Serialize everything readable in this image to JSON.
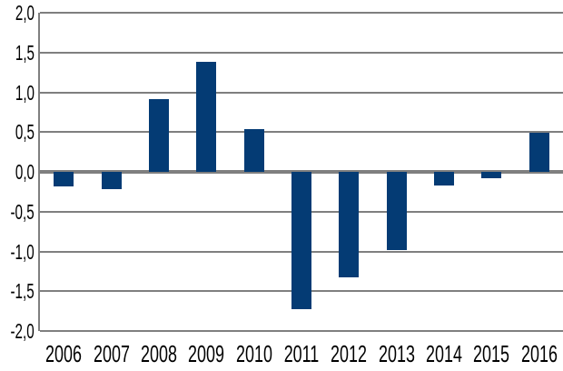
{
  "chart_data": {
    "type": "bar",
    "title": "",
    "xlabel": "",
    "ylabel": "",
    "categories": [
      "2006",
      "2007",
      "2008",
      "2009",
      "2010",
      "2011",
      "2012",
      "2013",
      "2014",
      "2015",
      "2016"
    ],
    "values": [
      -0.18,
      -0.22,
      0.92,
      1.38,
      0.54,
      -1.72,
      -1.33,
      -0.98,
      -0.17,
      -0.08,
      0.49
    ],
    "ylim": [
      -2.0,
      2.0
    ],
    "ytick_step": 0.5,
    "ytick_labels": [
      "2,0",
      "1,5",
      "1,0",
      "0,5",
      "0,0",
      "-0,5",
      "-1,0",
      "-1,5",
      "-2,0"
    ],
    "decimal_separator": ",",
    "grid": true,
    "legend": false,
    "colors": {
      "bar": "#043b74",
      "gridline": "#7f7f7f",
      "zero_axis": "#7f7f7f",
      "text": "#000000",
      "background": "#ffffff"
    }
  }
}
